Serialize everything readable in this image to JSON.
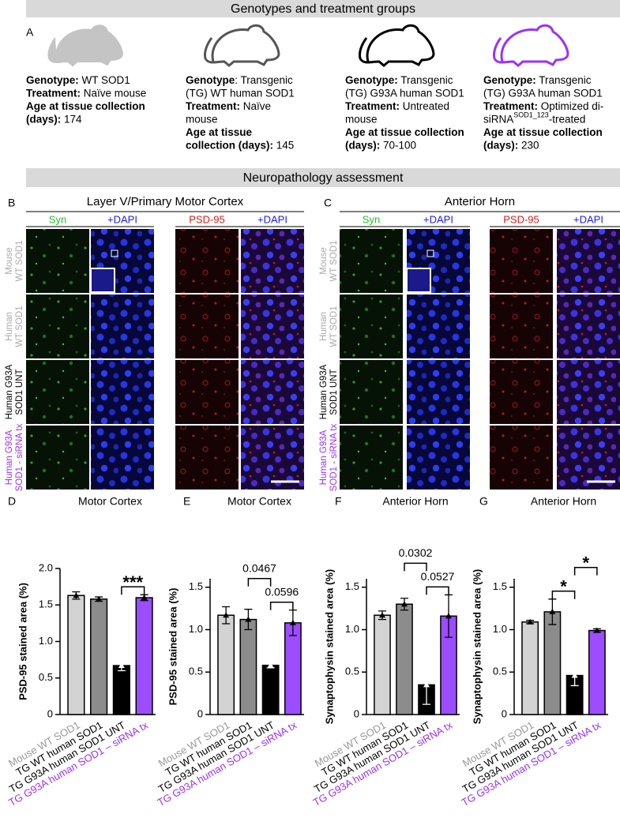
{
  "sections": {
    "genotypes": "Genotypes and treatment groups",
    "neuropathology": "Neuropathology assessment"
  },
  "panel_a": {
    "label": "A",
    "groups": [
      {
        "lines": [
          [
            {
              "text": "Genotype:",
              "bold": true
            },
            {
              "text": " WT SOD1"
            }
          ],
          [
            {
              "text": "Treatment:",
              "bold": true
            },
            {
              "text": " Naïve mouse"
            }
          ],
          [
            {
              "text": "Age at tissue collection",
              "bold": true
            }
          ],
          [
            {
              "text": "(days):",
              "bold": true
            },
            {
              "text": " 174"
            }
          ]
        ]
      },
      {
        "lines": [
          [
            {
              "text": "Genotype",
              "bold": true
            },
            {
              "text": ": Transgenic"
            }
          ],
          [
            {
              "text": "(TG) WT human SOD1"
            }
          ],
          [
            {
              "text": "Treatment:",
              "bold": true
            },
            {
              "text": " Naïve"
            }
          ],
          [
            {
              "text": "mouse"
            }
          ],
          [
            {
              "text": "Age at tissue",
              "bold": true
            }
          ],
          [
            {
              "text": "collection (days):",
              "bold": true
            },
            {
              "text": " 145"
            }
          ]
        ]
      },
      {
        "lines": [
          [
            {
              "text": "Genotype:",
              "bold": true
            },
            {
              "text": " Transgenic"
            }
          ],
          [
            {
              "text": "(TG) G93A human SOD1"
            }
          ],
          [
            {
              "text": "Treatment:",
              "bold": true
            },
            {
              "text": " Untreated"
            }
          ],
          [
            {
              "text": "mouse"
            }
          ],
          [
            {
              "text": "Age at tissue collection",
              "bold": true
            }
          ],
          [
            {
              "text": "(days):",
              "bold": true
            },
            {
              "text": " 70-100"
            }
          ]
        ]
      },
      {
        "lines": [
          [
            {
              "text": "Genotype:",
              "bold": true
            },
            {
              "text": " Transgenic"
            }
          ],
          [
            {
              "text": "(TG) G93A human SOD1"
            }
          ],
          [
            {
              "text": "Treatment:",
              "bold": true
            },
            {
              "text": " Optimized di-"
            }
          ],
          [
            {
              "text": "siRNA"
            },
            {
              "text": "SOD1_123",
              "sup": true
            },
            {
              "text": "-treated"
            }
          ],
          [
            {
              "text": "Age at tissue collection",
              "bold": true
            }
          ],
          [
            {
              "text": "(days):",
              "bold": true
            },
            {
              "text": " 230"
            }
          ]
        ]
      }
    ]
  },
  "panel_b": {
    "label": "B",
    "title": "Layer V/Primary Motor Cortex",
    "columns": [
      {
        "text": "Syn",
        "color": "#22c322"
      },
      {
        "text": "+DAPI",
        "color": "#1a1aff"
      },
      {
        "text": "PSD-95",
        "color": "#e01818"
      },
      {
        "text": "+DAPI",
        "color": "#1a1aff"
      }
    ],
    "rows": [
      {
        "lines": [
          "Mouse",
          "WT SOD1"
        ],
        "color": "#aaaaaa"
      },
      {
        "lines": [
          "Human",
          "WT SOD1"
        ],
        "color": "#aaaaaa"
      },
      {
        "lines": [
          "Human G93A",
          "SOD1 UNT"
        ],
        "color": "#000000"
      },
      {
        "lines": [
          "Human G93A",
          "SOD1 - siRNA tx"
        ],
        "color": "#9b30ff"
      }
    ]
  },
  "panel_c": {
    "label": "C",
    "title": "Anterior Horn",
    "columns": [
      {
        "text": "Syn",
        "color": "#22c322"
      },
      {
        "text": "+DAPI",
        "color": "#1a1aff"
      },
      {
        "text": "PSD-95",
        "color": "#e01818"
      },
      {
        "text": "+DAPI",
        "color": "#1a1aff"
      }
    ],
    "rows": [
      {
        "lines": [
          "Mouse",
          "WT SOD1"
        ],
        "color": "#aaaaaa"
      },
      {
        "lines": [
          "Human",
          "WT SOD1"
        ],
        "color": "#aaaaaa"
      },
      {
        "lines": [
          "Human G93A",
          "SOD1 UNT"
        ],
        "color": "#000000"
      },
      {
        "lines": [
          "Human G93A",
          "SOD1 - siRNA tx"
        ],
        "color": "#9b30ff"
      }
    ]
  },
  "chart_data": [
    {
      "type": "bar",
      "label": "D",
      "title": "Motor Cortex",
      "ylabel": "PSD-95 stained area (%)",
      "categories": [
        "Mouse WT SOD1",
        "TG WT human SOD1",
        "TG G93A human SOD1 UNT",
        "TG G93A human SOD1 – siRNA tx"
      ],
      "colors": [
        "#d3d3d3",
        "#8c8c8c",
        "#000000",
        "#9b4dff"
      ],
      "label_colors": [
        "#999999",
        "#000000",
        "#000000",
        "#9b30ff"
      ],
      "values": [
        1.63,
        1.58,
        0.67,
        1.6
      ],
      "errors": [
        0.05,
        0.03,
        0.07,
        0.04
      ],
      "ylim": [
        0,
        2
      ],
      "yticks": [
        0,
        0.5,
        {
          "value": 1,
          "label": "1.0"
        },
        1.5,
        {
          "value": 2,
          "label": "2.0"
        }
      ],
      "annotations": [
        {
          "from": 2,
          "to": 3,
          "label": "***"
        }
      ]
    },
    {
      "type": "bar",
      "label": "E",
      "title": "Motor Cortex",
      "ylabel": "PSD-95 stained area (%)",
      "categories": [
        "Mouse WT SOD1",
        "TG WT human SOD1",
        "TG G93A human SOD1 UNT",
        "TG G93A human SOD1 – siRNA tx"
      ],
      "colors": [
        "#d3d3d3",
        "#8c8c8c",
        "#000000",
        "#9b4dff"
      ],
      "label_colors": [
        "#999999",
        "#000000",
        "#000000",
        "#9b30ff"
      ],
      "values": [
        1.17,
        1.12,
        0.58,
        1.08
      ],
      "errors": [
        0.1,
        0.12,
        0.03,
        0.15
      ],
      "ylim": [
        0,
        1.6
      ],
      "yticks": [
        0,
        0.5,
        {
          "value": 1,
          "label": "1.0"
        },
        1.5
      ],
      "annotations": [
        {
          "from": 2,
          "to": 3,
          "label": "0.0596"
        },
        {
          "from": 1,
          "to": 2,
          "label": "0.0467"
        }
      ]
    },
    {
      "type": "bar",
      "label": "F",
      "title": "Anterior Horn",
      "ylabel": "Synaptophysin stained area (%)",
      "categories": [
        "Mouse WT SOD1",
        "TG WT human SOD1",
        "TG G93A human SOD1 UNT",
        "TG G93A human SOD1 – siRNA tx"
      ],
      "colors": [
        "#d3d3d3",
        "#8c8c8c",
        "#000000",
        "#9b4dff"
      ],
      "label_colors": [
        "#999999",
        "#000000",
        "#000000",
        "#9b30ff"
      ],
      "values": [
        1.17,
        1.3,
        0.35,
        1.16
      ],
      "errors": [
        0.05,
        0.07,
        0.23,
        0.25
      ],
      "ylim": [
        0,
        1.6
      ],
      "yticks": [
        0,
        0.5,
        {
          "value": 1,
          "label": "1.0"
        },
        1.5
      ],
      "annotations": [
        {
          "from": 2,
          "to": 3,
          "label": "0.0527"
        },
        {
          "from": 1,
          "to": 2,
          "label": "0.0302"
        }
      ]
    },
    {
      "type": "bar",
      "label": "G",
      "title": "Anterior Horn",
      "ylabel": "Synaptophysin stained area (%)",
      "categories": [
        "Mouse WT SOD1",
        "TG WT human SOD1",
        "TG G93A human SOD1 UNT",
        "TG G93A human SOD1 – siRNA tx"
      ],
      "colors": [
        "#d3d3d3",
        "#8c8c8c",
        "#000000",
        "#9b4dff"
      ],
      "label_colors": [
        "#999999",
        "#000000",
        "#000000",
        "#9b30ff"
      ],
      "values": [
        1.09,
        1.21,
        0.46,
        0.99
      ],
      "errors": [
        0.02,
        0.15,
        0.12,
        0.02
      ],
      "ylim": [
        0,
        1.6
      ],
      "yticks": [
        0,
        0.5,
        {
          "value": 1,
          "label": "1.0"
        },
        1.5
      ],
      "annotations": [
        {
          "from": 1,
          "to": 2,
          "label": "*"
        },
        {
          "from": 2,
          "to": 3,
          "label": "*"
        }
      ]
    }
  ]
}
